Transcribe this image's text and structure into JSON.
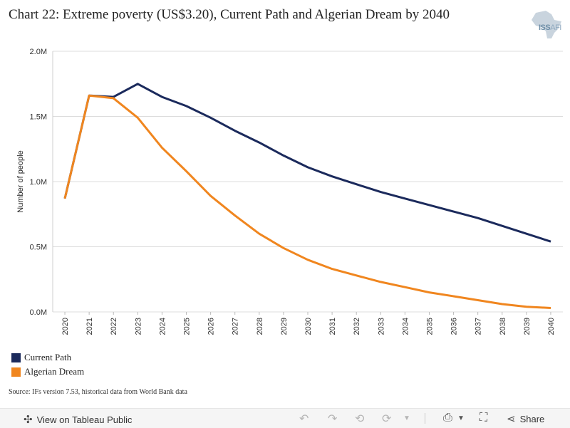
{
  "title": "Chart 22: Extreme poverty (US$3.20), Current Path and Algerian Dream by 2040",
  "logo": {
    "text_bold": "ISS",
    "text_thin": "AFI"
  },
  "source": "Source: IFs version 7.53, historical data from World Bank data",
  "toolbar": {
    "view_label": "View on Tableau Public",
    "share_label": "Share",
    "icons": [
      "tableau-icon",
      "undo-icon",
      "redo-icon",
      "revert-icon",
      "refresh-icon",
      "pause-icon",
      "download-icon",
      "fullscreen-icon",
      "share-icon"
    ]
  },
  "chart_data": {
    "type": "line",
    "ylabel": "Number of people",
    "xlabel": "",
    "ylim": [
      0,
      2000000
    ],
    "yticks": [
      {
        "value": 0,
        "label": "0.0M"
      },
      {
        "value": 500000,
        "label": "0.5M"
      },
      {
        "value": 1000000,
        "label": "1.0M"
      },
      {
        "value": 1500000,
        "label": "1.5M"
      },
      {
        "value": 2000000,
        "label": "2.0M"
      }
    ],
    "x": [
      "2020",
      "2021",
      "2022",
      "2023",
      "2024",
      "2025",
      "2026",
      "2027",
      "2028",
      "2029",
      "2030",
      "2031",
      "2032",
      "2033",
      "2034",
      "2035",
      "2036",
      "2037",
      "2038",
      "2039",
      "2040"
    ],
    "series": [
      {
        "name": "Current Path",
        "color": "#1b2a5c",
        "values": [
          870000,
          1660000,
          1650000,
          1750000,
          1650000,
          1580000,
          1490000,
          1390000,
          1300000,
          1200000,
          1110000,
          1040000,
          980000,
          920000,
          870000,
          820000,
          770000,
          720000,
          660000,
          600000,
          540000
        ]
      },
      {
        "name": "Algerian Dream",
        "color": "#f0861f",
        "values": [
          870000,
          1660000,
          1640000,
          1490000,
          1260000,
          1080000,
          890000,
          740000,
          600000,
          490000,
          400000,
          330000,
          280000,
          230000,
          190000,
          150000,
          120000,
          90000,
          60000,
          40000,
          30000
        ]
      }
    ],
    "grid": true,
    "legend_position": "bottom-left"
  }
}
